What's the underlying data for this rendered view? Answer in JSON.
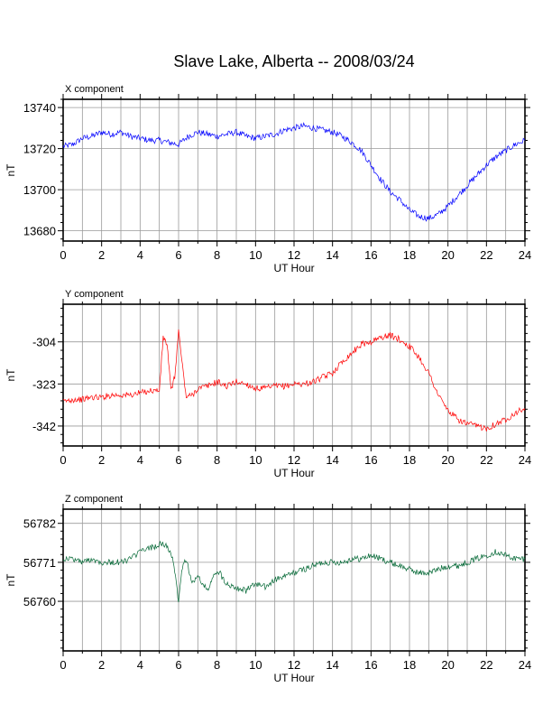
{
  "title": "Slave Lake, Alberta -- 2008/03/24",
  "colors": {
    "X": "#0000ff",
    "Y": "#ff0000",
    "Z": "#006633",
    "grid": "#9a9a9a",
    "frame": "#000000"
  },
  "chart_data": [
    {
      "type": "line",
      "title": "X component",
      "xlabel": "UT Hour",
      "ylabel": "nT",
      "xlim": [
        0,
        24
      ],
      "ylim": [
        13675,
        13744
      ],
      "xticks": [
        "0",
        "2",
        "4",
        "6",
        "8",
        "10",
        "12",
        "14",
        "16",
        "18",
        "20",
        "22",
        "24"
      ],
      "yticks": [
        "13680",
        "13700",
        "13720",
        "13740"
      ],
      "grid": true,
      "series": [
        {
          "color": "#0000ff",
          "x": [
            0,
            0.5,
            1,
            1.5,
            2,
            2.5,
            3,
            3.5,
            4,
            4.5,
            5,
            5.5,
            6,
            6.5,
            7,
            7.5,
            8,
            8.5,
            9,
            9.5,
            10,
            10.5,
            11,
            11.5,
            12,
            12.5,
            13,
            13.5,
            14,
            14.5,
            15,
            15.5,
            16,
            16.5,
            17,
            17.5,
            18,
            18.5,
            19,
            19.5,
            20,
            20.5,
            21,
            21.5,
            22,
            22.5,
            23,
            23.5,
            24
          ],
          "y": [
            13721,
            13722,
            13725,
            13726,
            13728,
            13727,
            13728,
            13726,
            13725,
            13724,
            13724,
            13723,
            13722,
            13726,
            13728,
            13727,
            13726,
            13727,
            13728,
            13726,
            13725,
            13726,
            13727,
            13729,
            13730,
            13731,
            13730,
            13729,
            13728,
            13726,
            13723,
            13719,
            13712,
            13705,
            13699,
            13695,
            13690,
            13687,
            13686,
            13688,
            13692,
            13697,
            13702,
            13707,
            13712,
            13716,
            13719,
            13722,
            13724
          ]
        }
      ]
    },
    {
      "type": "line",
      "title": "Y component",
      "xlabel": "UT Hour",
      "ylabel": "nT",
      "xlim": [
        0,
        24
      ],
      "ylim": [
        -351,
        -287
      ],
      "xticks": [
        "0",
        "2",
        "4",
        "6",
        "8",
        "10",
        "12",
        "14",
        "16",
        "18",
        "20",
        "22",
        "24"
      ],
      "yticks": [
        "-304",
        "-323",
        "-342"
      ],
      "grid": true,
      "series": [
        {
          "color": "#ff0000",
          "x": [
            0,
            0.5,
            1,
            1.5,
            2,
            2.5,
            3,
            3.5,
            4,
            4.5,
            5,
            5.2,
            5.4,
            5.6,
            5.8,
            6,
            6.2,
            6.4,
            6.7,
            7,
            7.5,
            8,
            8.5,
            9,
            9.5,
            10,
            10.5,
            11,
            11.5,
            12,
            12.5,
            13,
            13.5,
            14,
            14.5,
            15,
            15.5,
            16,
            16.5,
            17,
            17.5,
            18,
            18.5,
            19,
            19.5,
            20,
            20.5,
            21,
            21.5,
            22,
            22.5,
            23,
            23.5,
            24
          ],
          "y": [
            -331,
            -330,
            -330,
            -329,
            -329,
            -328,
            -328,
            -328,
            -327,
            -326,
            -326,
            -302,
            -305,
            -326,
            -320,
            -299,
            -315,
            -329,
            -328,
            -325,
            -324,
            -322,
            -324,
            -322,
            -323,
            -325,
            -325,
            -324,
            -324,
            -323,
            -323,
            -322,
            -320,
            -318,
            -313,
            -309,
            -305,
            -304,
            -302,
            -301,
            -303,
            -306,
            -311,
            -318,
            -328,
            -335,
            -339,
            -341,
            -342,
            -343,
            -341,
            -339,
            -336,
            -334
          ]
        }
      ]
    },
    {
      "type": "line",
      "title": "Z component",
      "xlabel": "UT Hour",
      "ylabel": "nT",
      "xlim": [
        0,
        24
      ],
      "ylim": [
        56746,
        56786
      ],
      "xticks": [
        "0",
        "2",
        "4",
        "6",
        "8",
        "10",
        "12",
        "14",
        "16",
        "18",
        "20",
        "22",
        "24"
      ],
      "yticks": [
        "56760",
        "56771",
        "56782"
      ],
      "grid": true,
      "series": [
        {
          "color": "#006633",
          "x": [
            0,
            0.5,
            1,
            1.5,
            2,
            2.5,
            3,
            3.5,
            4,
            4.5,
            5,
            5.3,
            5.6,
            5.8,
            6,
            6.2,
            6.4,
            6.7,
            7,
            7.5,
            8,
            8.5,
            9,
            9.5,
            10,
            10.5,
            11,
            11.5,
            12,
            12.5,
            13,
            13.5,
            14,
            14.5,
            15,
            15.5,
            16,
            16.5,
            17,
            17.5,
            18,
            18.5,
            19,
            19.5,
            20,
            20.5,
            21,
            21.5,
            22,
            22.5,
            23,
            23.5,
            24
          ],
          "y": [
            56772,
            56772,
            56771,
            56772,
            56771,
            56771,
            56771,
            56772,
            56774,
            56775,
            56776,
            56776,
            56774,
            56768,
            56760,
            56770,
            56772,
            56765,
            56767,
            56763,
            56769,
            56765,
            56764,
            56763,
            56765,
            56764,
            56766,
            56767,
            56768,
            56769,
            56770,
            56771,
            56771,
            56771,
            56772,
            56772,
            56773,
            56772,
            56771,
            56770,
            56769,
            56768,
            56768,
            56769,
            56770,
            56770,
            56771,
            56772,
            56773,
            56774,
            56773,
            56772,
            56772
          ]
        }
      ]
    }
  ]
}
